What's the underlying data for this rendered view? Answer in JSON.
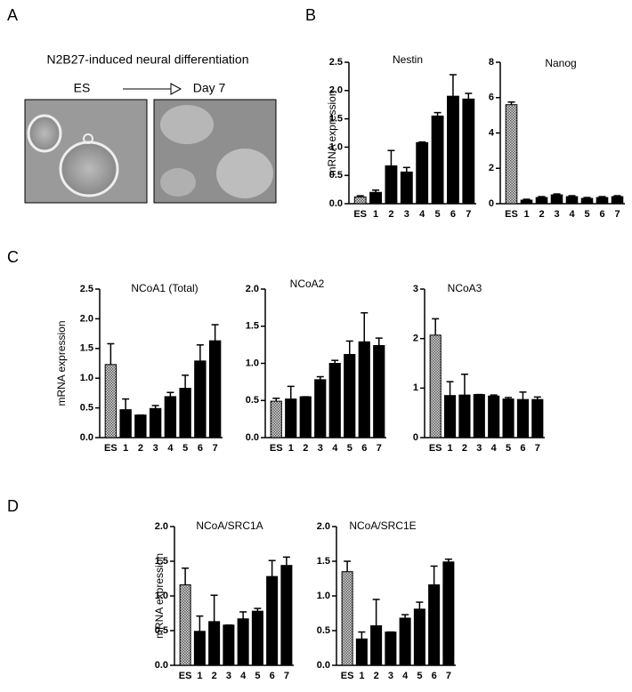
{
  "figure": {
    "panel_labels": [
      "A",
      "B",
      "C",
      "D"
    ],
    "panel_a": {
      "title": "N2B27-induced neural differentiation",
      "from": "ES",
      "to": "Day 7"
    }
  },
  "chart_data": [
    {
      "type": "bar",
      "title": "Nestin",
      "ylabel": "mRNA expression",
      "categories": [
        "ES",
        "1",
        "2",
        "3",
        "4",
        "5",
        "6",
        "7"
      ],
      "values": [
        0.12,
        0.2,
        0.67,
        0.56,
        1.08,
        1.55,
        1.9,
        1.85
      ],
      "errors": [
        0.02,
        0.04,
        0.27,
        0.08,
        0.01,
        0.06,
        0.38,
        0.1
      ],
      "bar_fills": [
        "checker",
        "#000000",
        "#000000",
        "#000000",
        "#000000",
        "#000000",
        "#000000",
        "#000000"
      ],
      "ylim": [
        0,
        2.5
      ],
      "yticks": [
        {
          "value": 0,
          "label": "0.0"
        },
        0.5,
        {
          "value": 1,
          "label": "1.0"
        },
        1.5,
        {
          "value": 2,
          "label": "2.0"
        },
        2.5
      ]
    },
    {
      "type": "bar",
      "title": "Nanog",
      "categories": [
        "ES",
        "1",
        "2",
        "3",
        "4",
        "5",
        "6",
        "7"
      ],
      "values": [
        5.6,
        0.2,
        0.35,
        0.5,
        0.4,
        0.3,
        0.35,
        0.4
      ],
      "errors": [
        0.15,
        0.05,
        0.05,
        0.05,
        0.05,
        0.05,
        0.05,
        0.05
      ],
      "bar_fills": [
        "checker",
        "#000000",
        "#000000",
        "#000000",
        "#000000",
        "#000000",
        "#000000",
        "#000000"
      ],
      "ylim": [
        0,
        8
      ],
      "yticks": [
        0,
        2,
        4,
        6,
        8
      ]
    },
    {
      "type": "bar",
      "title": "NCoA1 (Total)",
      "ylabel": "mRNA expression",
      "categories": [
        "ES",
        "1",
        "2",
        "3",
        "4",
        "5",
        "6",
        "7"
      ],
      "values": [
        1.23,
        0.47,
        0.38,
        0.49,
        0.69,
        0.83,
        1.29,
        1.63
      ],
      "errors": [
        0.35,
        0.18,
        0,
        0.05,
        0.07,
        0.22,
        0.27,
        0.27
      ],
      "bar_fills": [
        "checker",
        "#000000",
        "#000000",
        "#000000",
        "#000000",
        "#000000",
        "#000000",
        "#000000"
      ],
      "ylim": [
        0,
        2.5
      ],
      "yticks": [
        {
          "value": 0,
          "label": "0.0"
        },
        0.5,
        {
          "value": 1,
          "label": "1.0"
        },
        1.5,
        {
          "value": 2,
          "label": "2.0"
        },
        2.5
      ]
    },
    {
      "type": "bar",
      "title": "NCoA2",
      "categories": [
        "ES",
        "1",
        "2",
        "3",
        "4",
        "5",
        "6",
        "7"
      ],
      "values": [
        0.49,
        0.52,
        0.55,
        0.78,
        1.0,
        1.12,
        1.29,
        1.24
      ],
      "errors": [
        0.04,
        0.17,
        0,
        0.04,
        0.04,
        0.18,
        0.39,
        0.1
      ],
      "bar_fills": [
        "checker",
        "#000000",
        "#000000",
        "#000000",
        "#000000",
        "#000000",
        "#000000",
        "#000000"
      ],
      "ylim": [
        0,
        2
      ],
      "yticks": [
        {
          "value": 0,
          "label": "0.0"
        },
        0.5,
        {
          "value": 1,
          "label": "1.0"
        },
        1.5,
        {
          "value": 2,
          "label": "2.0"
        }
      ]
    },
    {
      "type": "bar",
      "title": "NCoA3",
      "categories": [
        "ES",
        "1",
        "2",
        "3",
        "4",
        "5",
        "6",
        "7"
      ],
      "values": [
        2.07,
        0.85,
        0.86,
        0.87,
        0.84,
        0.78,
        0.77,
        0.77
      ],
      "errors": [
        0.33,
        0.28,
        0.42,
        0,
        0.02,
        0.03,
        0.15,
        0.05
      ],
      "bar_fills": [
        "checker",
        "#000000",
        "#000000",
        "#000000",
        "#000000",
        "#000000",
        "#000000",
        "#000000"
      ],
      "ylim": [
        0,
        3
      ],
      "yticks": [
        0,
        1,
        2,
        3
      ]
    },
    {
      "type": "bar",
      "title": "NCoA/SRC1A",
      "ylabel": "mRNA expression",
      "categories": [
        "ES",
        "1",
        "2",
        "3",
        "4",
        "5",
        "6",
        "7"
      ],
      "values": [
        1.16,
        0.49,
        0.63,
        0.58,
        0.67,
        0.78,
        1.28,
        1.44
      ],
      "errors": [
        0.24,
        0.22,
        0.38,
        0,
        0.1,
        0.04,
        0.23,
        0.12
      ],
      "bar_fills": [
        "checker",
        "#000000",
        "#000000",
        "#000000",
        "#000000",
        "#000000",
        "#000000",
        "#000000"
      ],
      "ylim": [
        0,
        2
      ],
      "yticks": [
        {
          "value": 0,
          "label": "0.0"
        },
        0.5,
        {
          "value": 1,
          "label": "1.0"
        },
        1.5,
        {
          "value": 2,
          "label": "2.0"
        }
      ]
    },
    {
      "type": "bar",
      "title": "NCoA/SRC1E",
      "categories": [
        "ES",
        "1",
        "2",
        "3",
        "4",
        "5",
        "6",
        "7"
      ],
      "values": [
        1.35,
        0.38,
        0.57,
        0.48,
        0.68,
        0.81,
        1.16,
        1.49
      ],
      "errors": [
        0.15,
        0.1,
        0.38,
        0,
        0.05,
        0.1,
        0.27,
        0.04
      ],
      "bar_fills": [
        "checker",
        "#000000",
        "#000000",
        "#000000",
        "#000000",
        "#000000",
        "#000000",
        "#000000"
      ],
      "ylim": [
        0,
        2
      ],
      "yticks": [
        {
          "value": 0,
          "label": "0.0"
        },
        0.5,
        {
          "value": 1,
          "label": "1.0"
        },
        1.5,
        {
          "value": 2,
          "label": "2.0"
        }
      ]
    }
  ]
}
